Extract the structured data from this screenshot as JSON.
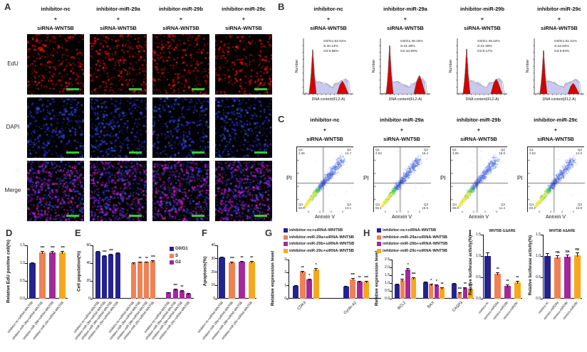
{
  "colors": {
    "navy": "#23238f",
    "orange": "#ee8254",
    "purple": "#a3289c",
    "yellow": "#f6a81c",
    "scalebar_green": "#33cc33",
    "hist_red": "#d40000",
    "hist_lavender": "#c9c9ee",
    "edu_red": "#e02020",
    "dapi_blue": "#2a3fe0",
    "merge_magenta": "#c534c0"
  },
  "group_names": {
    "short": [
      "inhibitor-nc",
      "inhibitor-miR-29a",
      "inhibitor-miR-29b",
      "inhibitor-miR-29c"
    ],
    "plus": "+",
    "sirna": "siRNA-WNT5B",
    "combined": [
      "inhibitor-nc+siRNA-WNT5B",
      "inhibitor-miR-29a+siRNA-WNT5B",
      "inhibitor-miR-29b+siRNA-WNT5B",
      "inhibitor-miR-29c+siRNA-WNT5B"
    ]
  },
  "panelA": {
    "label": "A",
    "row_labels": [
      "EdU",
      "DAPI",
      "Merge"
    ]
  },
  "panelB": {
    "label": "B",
    "ylabel": "Number",
    "xlabel": "DNA content(FL2-A)",
    "stats": [
      [
        "G0/G1:53.01%",
        "S:40.14%",
        "G2:6.86%"
      ],
      [
        "G0/G1:48.15%",
        "S:41.26%",
        "G2:10.59%"
      ],
      [
        "G0/G1:49.44%",
        "S:41.39%",
        "G2:9.17%"
      ],
      [
        "G0/G1:51.41%",
        "S:42.64%",
        "G2:5.94%"
      ]
    ]
  },
  "panelC": {
    "label": "C",
    "ylabel": "PI",
    "xlabel": "Annxin V",
    "quadrant_names": [
      "Q1",
      "Q2",
      "Q3",
      "Q4"
    ],
    "quadrants": [
      {
        "q1": "2.36",
        "q2": "14.7",
        "q3": "13.1",
        "q4": "69.9"
      },
      {
        "q1": "2.63",
        "q2": "16.4",
        "q3": "15.9",
        "q4": "65.1"
      },
      {
        "q1": "3.05",
        "q2": "15.8",
        "q3": "11.4",
        "q4": "69.5"
      },
      {
        "q1": "2.63",
        "q2": "14.3",
        "q3": "13.8",
        "q4": "69.2"
      }
    ]
  },
  "panelD": {
    "label": "D"
  },
  "panelE": {
    "label": "E"
  },
  "panelF": {
    "label": "F"
  },
  "panelG": {
    "label": "G"
  },
  "panelH": {
    "label": "H"
  },
  "panelI": {
    "label": "I"
  },
  "chart_data": [
    {
      "id": "D",
      "panel": "D",
      "type": "bar",
      "ylabel": "Relative EdU positive cell(%)",
      "ylim": [
        0,
        1.5
      ],
      "ytick_labels": [
        "0.0",
        "0.5",
        "1.0",
        "1.5"
      ],
      "categories": [
        "inhibitor-nc+siRNA-WNT5B",
        "inhibitor-miR-29a+siRNA-WNT5B",
        "inhibitor-miR-29b+siRNA-WNT5B",
        "inhibitor-miR-29c+siRNA-WNT5B"
      ],
      "values": [
        1.0,
        1.3,
        1.31,
        1.3
      ],
      "errors": [
        0.03,
        0.04,
        0.04,
        0.04
      ],
      "sig": [
        "",
        "***",
        "***",
        "***"
      ],
      "bar_colors": [
        "navy",
        "orange",
        "purple",
        "yellow"
      ]
    },
    {
      "id": "E",
      "panel": "E",
      "type": "grouped-bar",
      "ylabel": "Cell population(%)",
      "ylim": [
        0,
        60
      ],
      "ytick_labels": [
        "0",
        "20",
        "40",
        "60"
      ],
      "legend": {
        "labels": [
          "G0/G1",
          "S",
          "G2"
        ],
        "colors": [
          "navy",
          "orange",
          "purple"
        ]
      },
      "bar_group_labels": [
        "inhibitor-nc+siRNA-WNT5B",
        "inhibitor-miR-29a+siRNA-WNT5B",
        "inhibitor-miR-29b+siRNA-WNT5B",
        "inhibitor-miR-29c+siRNA-WNT5B"
      ],
      "clusters": [
        {
          "name": "G0/G1",
          "color": "navy",
          "values": [
            53.0,
            48.2,
            49.4,
            51.4
          ],
          "errors": [
            0.8,
            0.7,
            0.7,
            0.8
          ],
          "sig": [
            "",
            "***",
            "***",
            ""
          ]
        },
        {
          "name": "S",
          "color": "orange",
          "values": [
            40.1,
            41.3,
            41.4,
            42.6
          ],
          "errors": [
            0.5,
            0.5,
            0.5,
            0.6
          ],
          "sig": [
            "",
            "**",
            "**",
            "***"
          ]
        },
        {
          "name": "G2",
          "color": "purple",
          "values": [
            6.9,
            10.6,
            9.2,
            5.9
          ],
          "errors": [
            0.4,
            0.6,
            0.5,
            0.4
          ],
          "sig": [
            "",
            "***",
            "**",
            ""
          ]
        }
      ]
    },
    {
      "id": "F",
      "panel": "F",
      "type": "bar",
      "ylabel": "Apoptosis(%)",
      "ylim": [
        0,
        40
      ],
      "ytick_labels": [
        "0",
        "10",
        "20",
        "30",
        "40"
      ],
      "categories": [
        "inhibitor-nc+siRNA-WNT5B",
        "inhibitor-miR-29a+siRNA-WNT5B",
        "inhibitor-miR-29b+siRNA-WNT5B",
        "inhibitor-miR-29c+siRNA-WNT5B"
      ],
      "values": [
        31,
        27,
        28,
        28
      ],
      "errors": [
        0.6,
        0.5,
        0.5,
        0.5
      ],
      "sig": [
        "",
        "***",
        "**",
        "**"
      ],
      "bar_colors": [
        "navy",
        "orange",
        "purple",
        "yellow"
      ]
    },
    {
      "id": "G",
      "panel": "G",
      "type": "grouped-bar",
      "ylabel": "Relative expression level",
      "ylim": [
        0,
        3
      ],
      "ytick_labels": [
        "0",
        "1",
        "2",
        "3"
      ],
      "categories": [
        "CDK4",
        "Cyclin A2"
      ],
      "legend": {
        "labels": [
          "inhibitor-nc+siRNA-WNT5B",
          "inhibitor-miR-29a+siRNA-WNT5B",
          "inhibitor-miR-29b+siRNA-WNT5B",
          "inhibitor-miR-29c+siRNA-WNT5B"
        ],
        "colors": [
          "navy",
          "orange",
          "purple",
          "yellow"
        ]
      },
      "series": [
        {
          "name": "inhibitor-nc+siRNA-WNT5B",
          "color": "navy",
          "values": [
            1.0,
            0.95
          ],
          "errors": [
            0.05,
            0.05
          ],
          "sig": [
            "",
            ""
          ]
        },
        {
          "name": "inhibitor-miR-29a+siRNA-WNT5B",
          "color": "orange",
          "values": [
            2.05,
            1.5
          ],
          "errors": [
            0.1,
            0.06
          ],
          "sig": [
            "**",
            "***"
          ]
        },
        {
          "name": "inhibitor-miR-29b+siRNA-WNT5B",
          "color": "purple",
          "values": [
            1.45,
            1.3
          ],
          "errors": [
            0.08,
            0.05
          ],
          "sig": [
            "*",
            "**"
          ]
        },
        {
          "name": "inhibitor-miR-29c+siRNA-WNT5B",
          "color": "yellow",
          "values": [
            2.25,
            1.32
          ],
          "errors": [
            0.12,
            0.06
          ],
          "sig": [
            "*",
            "***"
          ]
        }
      ]
    },
    {
      "id": "H",
      "panel": "H",
      "type": "grouped-bar",
      "ylabel": "Relative expression level",
      "ylim": [
        0,
        2.5
      ],
      "ytick_labels": [
        "0.0",
        "0.5",
        "1.0",
        "1.5",
        "2.0",
        "2.5"
      ],
      "categories": [
        "BCL2",
        "BAX",
        "CASP3"
      ],
      "legend": {
        "labels": [
          "inhibitor-nc+siRNA-WNT5B",
          "inhibitor-miR-29a+siRNA-WNT5B",
          "inhibitor-miR-29b+siRNA-WNT5B",
          "inhibitor-miR-29c+siRNA-WNT5B"
        ],
        "colors": [
          "navy",
          "orange",
          "purple",
          "yellow"
        ]
      },
      "series": [
        {
          "name": "inhibitor-nc+siRNA-WNT5B",
          "color": "navy",
          "values": [
            0.92,
            1.05,
            0.95
          ],
          "errors": [
            0.05,
            0.05,
            0.05
          ],
          "sig": [
            "",
            "",
            ""
          ]
        },
        {
          "name": "inhibitor-miR-29a+siRNA-WNT5B",
          "color": "orange",
          "values": [
            1.2,
            0.9,
            0.35
          ],
          "errors": [
            0.07,
            0.05,
            0.04
          ],
          "sig": [
            "**",
            "*",
            "***"
          ]
        },
        {
          "name": "inhibitor-miR-29b+siRNA-WNT5B",
          "color": "purple",
          "values": [
            1.85,
            0.85,
            0.7
          ],
          "errors": [
            0.1,
            0.05,
            0.05
          ],
          "sig": [
            "*",
            "*",
            "**"
          ]
        },
        {
          "name": "inhibitor-miR-29c+siRNA-WNT5B",
          "color": "yellow",
          "values": [
            1.3,
            0.7,
            0.6
          ],
          "errors": [
            0.07,
            0.05,
            0.05
          ],
          "sig": [
            "***",
            "**",
            "***"
          ]
        }
      ]
    },
    {
      "id": "I1",
      "panel": "I",
      "type": "bar",
      "title": "WNT5B GΔARE",
      "ylabel": "Relative luciferase activity(%)",
      "ylim": [
        0,
        1.5
      ],
      "ytick_labels": [
        "0.0",
        "0.5",
        "1.0",
        "1.5"
      ],
      "categories": [
        "mimics-nc",
        "mimics-miR29a",
        "mimics-miR29b",
        "mimics-miR29c"
      ],
      "values": [
        1.0,
        0.58,
        0.3,
        0.39
      ],
      "errors": [
        0.08,
        0.04,
        0.04,
        0.03
      ],
      "sig": [
        "",
        "**",
        "**",
        "**"
      ],
      "bar_colors": [
        "navy",
        "orange",
        "purple",
        "yellow"
      ]
    },
    {
      "id": "I2",
      "panel": "I",
      "type": "bar",
      "title": "WNT5B AΔARE",
      "ylabel": "Relative luciferase activity(%)",
      "ylim": [
        0,
        1.5
      ],
      "ytick_labels": [
        "0.0",
        "0.5",
        "1.0",
        "1.5"
      ],
      "categories": [
        "mimics-nc",
        "mimics-miR29a",
        "mimics-miR29b",
        "mimics-miR29c"
      ],
      "values": [
        1.0,
        0.96,
        0.98,
        1.02
      ],
      "errors": [
        0.07,
        0.05,
        0.06,
        0.07
      ],
      "sig": [
        "",
        "ns",
        "ns",
        "ns"
      ],
      "bar_colors": [
        "navy",
        "orange",
        "purple",
        "yellow"
      ]
    }
  ]
}
